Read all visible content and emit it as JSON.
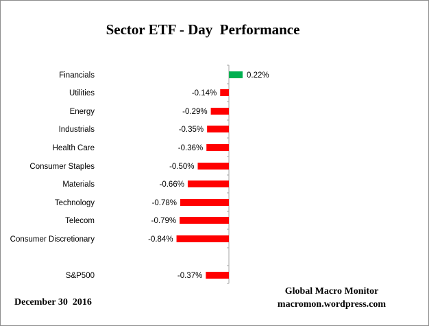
{
  "chart_data": {
    "type": "bar",
    "orientation": "horizontal",
    "title": "Sector ETF - Day  Performance",
    "categories": [
      "Financials",
      "Utilities",
      "Energy",
      "Industrials",
      "Health Care",
      "Consumer Staples",
      "Materials",
      "Technology",
      "Telecom",
      "Consumer Discretionary",
      "S&P500"
    ],
    "values": [
      0.22,
      -0.14,
      -0.29,
      -0.35,
      -0.36,
      -0.5,
      -0.66,
      -0.78,
      -0.79,
      -0.84,
      -0.37
    ],
    "value_labels": [
      "0.22%",
      "-0.14%",
      "-0.29%",
      "-0.35%",
      "-0.36%",
      "-0.50%",
      "-0.66%",
      "-0.78%",
      "-0.79%",
      "-0.84%",
      "-0.37%"
    ],
    "colors": {
      "positive": "#00b050",
      "negative": "#ff0000",
      "axis": "#a6a6a6"
    },
    "grid": false,
    "legend": "none"
  },
  "footer": {
    "date": "December 30  2016",
    "source_line1": "Global Macro Monitor",
    "source_line2": "macromon.wordpress.com"
  }
}
